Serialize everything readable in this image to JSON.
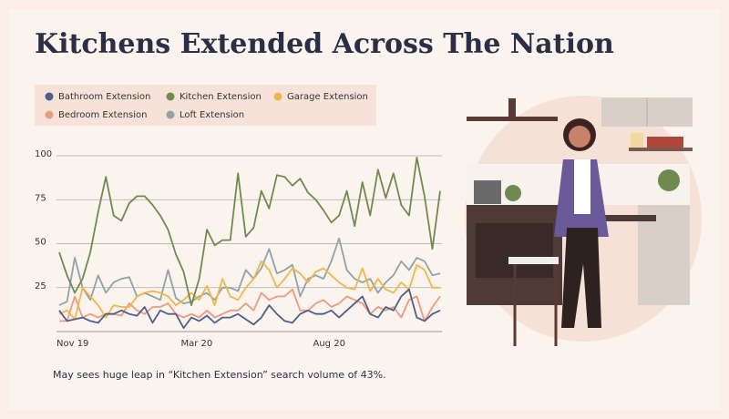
{
  "chart_data": {
    "type": "line",
    "title": "Kitchens Extended Across The Nation",
    "annotation": "May sees huge leap in “Kitchen Extension” search volume of 43%.",
    "categories": [
      "Nov 19",
      null,
      null,
      null,
      null,
      null,
      null,
      null,
      null,
      null,
      null,
      null,
      null,
      null,
      null,
      null,
      "Mar 20",
      null,
      null,
      null,
      null,
      null,
      null,
      null,
      null,
      null,
      null,
      null,
      null,
      null,
      null,
      null,
      null,
      "Aug 20",
      null,
      null,
      null,
      null,
      null,
      null,
      null,
      null,
      null,
      null,
      null,
      null,
      null,
      null,
      null,
      null
    ],
    "ylim": [
      0,
      100
    ],
    "yticks": [
      25,
      50,
      75,
      100
    ],
    "grid": true,
    "series": [
      {
        "name": "Bathroom Extension",
        "color": "#4e5f8c",
        "values": [
          12,
          6,
          7,
          8,
          6,
          5,
          10,
          10,
          12,
          10,
          9,
          14,
          5,
          12,
          10,
          10,
          2,
          8,
          6,
          9,
          5,
          8,
          8,
          10,
          7,
          4,
          8,
          15,
          10,
          6,
          5,
          10,
          12,
          10,
          10,
          12,
          8,
          12,
          16,
          20,
          10,
          8,
          14,
          12,
          20,
          24,
          8,
          6,
          10,
          12
        ]
      },
      {
        "name": "Kitchen Extension",
        "color": "#6f8a4f",
        "values": [
          45,
          32,
          22,
          30,
          45,
          68,
          88,
          66,
          63,
          73,
          77,
          77,
          72,
          66,
          58,
          44,
          34,
          15,
          30,
          58,
          49,
          52,
          52,
          90,
          54,
          59,
          80,
          70,
          89,
          88,
          83,
          87,
          79,
          75,
          69,
          62,
          66,
          80,
          60,
          85,
          66,
          92,
          76,
          90,
          72,
          66,
          99,
          77,
          47,
          80
        ]
      },
      {
        "name": "Garage Extension",
        "color": "#f0b64b",
        "values": [
          10,
          12,
          7,
          25,
          20,
          15,
          8,
          15,
          14,
          14,
          20,
          22,
          23,
          22,
          20,
          15,
          18,
          22,
          18,
          26,
          15,
          30,
          20,
          18,
          25,
          30,
          40,
          35,
          25,
          30,
          36,
          33,
          28,
          34,
          36,
          32,
          28,
          25,
          24,
          36,
          23,
          30,
          24,
          22,
          28,
          24,
          38,
          35,
          25,
          25
        ]
      },
      {
        "name": "Bedroom Extension",
        "color": "#ec9a7f",
        "values": [
          6,
          6,
          20,
          8,
          10,
          8,
          10,
          10,
          9,
          16,
          12,
          10,
          14,
          14,
          16,
          10,
          8,
          10,
          8,
          12,
          8,
          10,
          12,
          12,
          16,
          12,
          22,
          18,
          20,
          20,
          24,
          12,
          12,
          16,
          18,
          14,
          16,
          20,
          18,
          16,
          10,
          14,
          12,
          14,
          8,
          18,
          20,
          6,
          14,
          20
        ]
      },
      {
        "name": "Loft Extension",
        "color": "#8fa3a8",
        "values": [
          15,
          17,
          42,
          25,
          18,
          32,
          22,
          28,
          30,
          31,
          20,
          22,
          20,
          18,
          35,
          19,
          16,
          17,
          20,
          22,
          18,
          25,
          25,
          23,
          35,
          30,
          36,
          47,
          33,
          35,
          38,
          20,
          30,
          32,
          30,
          40,
          53,
          35,
          30,
          28,
          30,
          22,
          28,
          32,
          40,
          35,
          42,
          40,
          32,
          33
        ]
      }
    ]
  }
}
